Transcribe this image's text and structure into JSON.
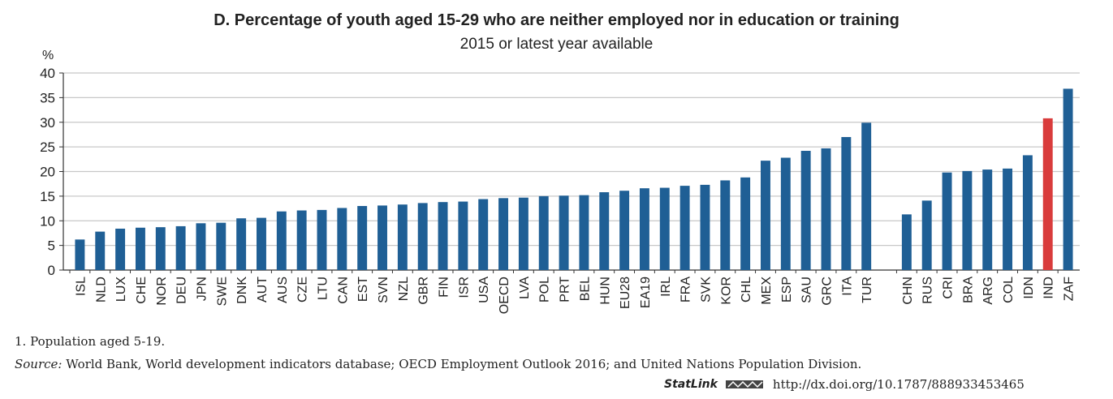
{
  "chart_data": {
    "type": "bar",
    "title": "D. Percentage of youth aged 15-29 who are neither employed nor in education or training",
    "subtitle": "2015 or latest year available",
    "ylabel": "%",
    "ylim": [
      0,
      40
    ],
    "yticks": [
      0,
      5,
      10,
      15,
      20,
      25,
      30,
      35,
      40
    ],
    "grid": true,
    "colors": {
      "default": "#1f5f95",
      "highlight": "#d93c3c",
      "grid": "#c8c8c8"
    },
    "groups": [
      {
        "categories": [
          "ISL",
          "NLD",
          "LUX",
          "CHE",
          "NOR",
          "DEU",
          "JPN",
          "SWE",
          "DNK",
          "AUT",
          "AUS",
          "CZE",
          "LTU",
          "CAN",
          "EST",
          "SVN",
          "NZL",
          "GBR",
          "FIN",
          "ISR",
          "USA",
          "OECD",
          "LVA",
          "POL",
          "PRT",
          "BEL",
          "HUN",
          "EU28",
          "EA19",
          "IRL",
          "FRA",
          "SVK",
          "KOR",
          "CHL",
          "MEX",
          "ESP",
          "SAU",
          "GRC",
          "ITA",
          "TUR"
        ],
        "values": [
          6.2,
          7.8,
          8.4,
          8.6,
          8.7,
          8.9,
          9.5,
          9.6,
          10.5,
          10.6,
          11.9,
          12.1,
          12.2,
          12.6,
          13.0,
          13.1,
          13.3,
          13.6,
          13.8,
          13.9,
          14.4,
          14.6,
          14.7,
          15.0,
          15.1,
          15.2,
          15.8,
          16.1,
          16.6,
          16.7,
          17.1,
          17.3,
          18.2,
          18.8,
          22.2,
          22.8,
          24.2,
          24.7,
          27.0,
          29.9
        ]
      },
      {
        "categories": [
          "CHN",
          "RUS",
          "CRI",
          "BRA",
          "ARG",
          "COL",
          "IDN",
          "IND",
          "ZAF"
        ],
        "values": [
          11.3,
          14.1,
          19.8,
          20.1,
          20.4,
          20.6,
          23.3,
          30.8,
          36.8
        ],
        "highlight": [
          "IND"
        ]
      }
    ]
  },
  "notes": {
    "footnote": "1.  Population aged 5-19.",
    "source_label": "Source:",
    "source_text": " World Bank, World development indicators database; OECD Employment Outlook 2016; and United Nations Population Division.",
    "statlink_label": "StatLink",
    "statlink_url": "http://dx.doi.org/10.1787/888933453465"
  }
}
